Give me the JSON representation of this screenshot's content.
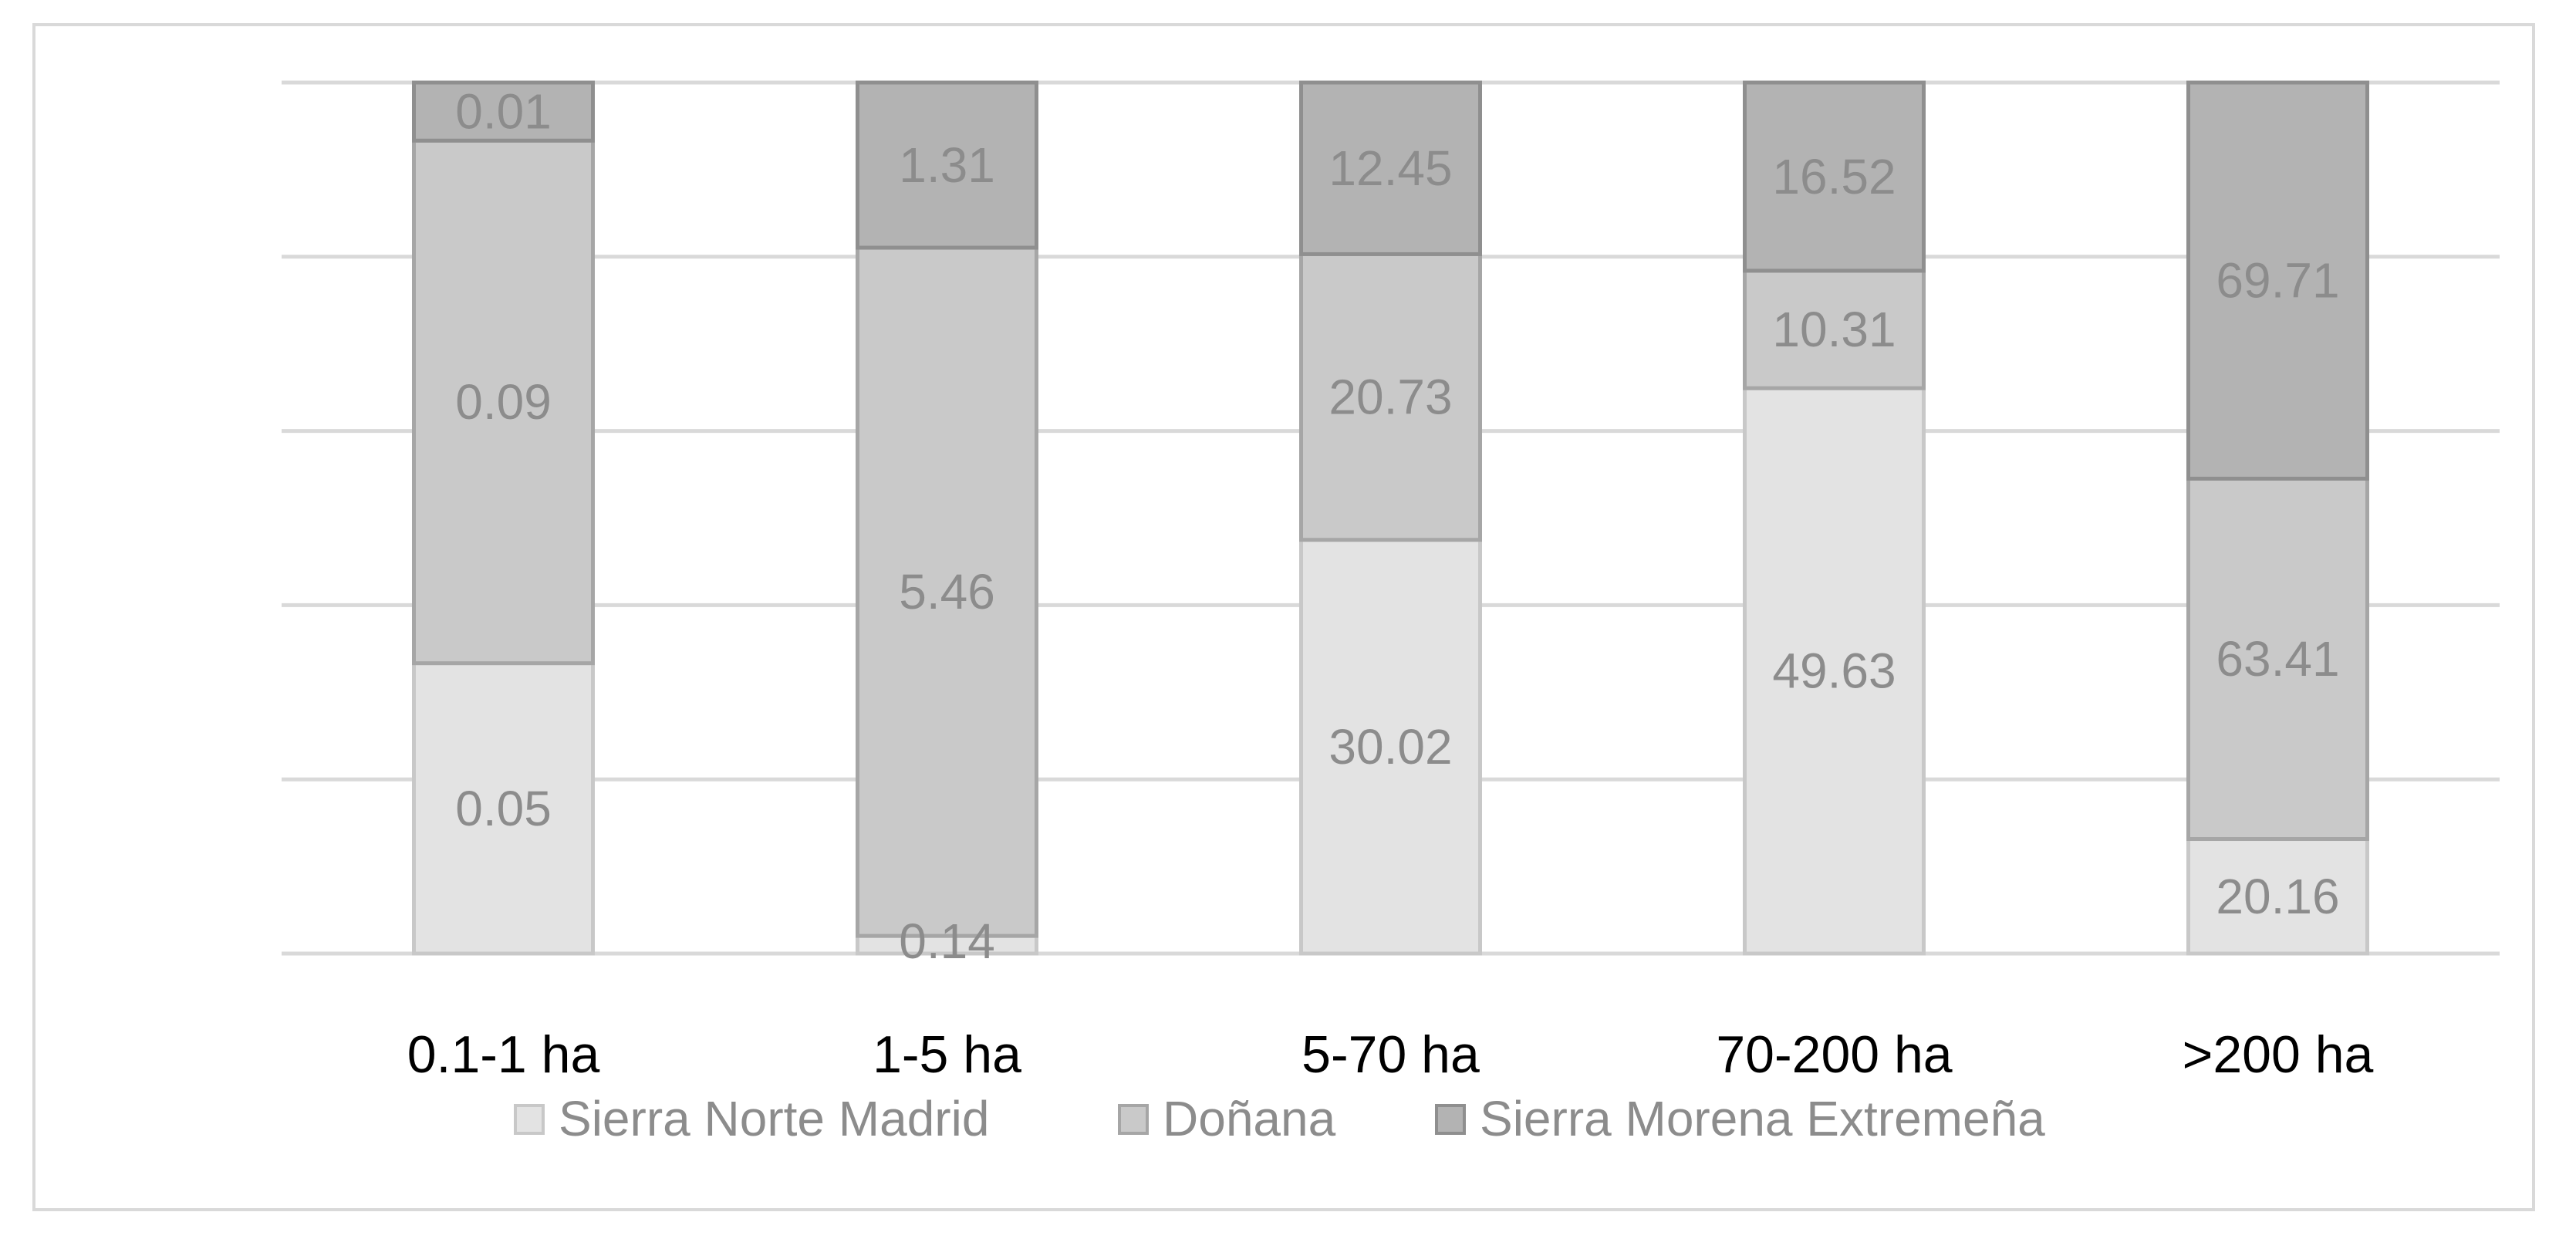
{
  "chart_data": {
    "type": "bar",
    "stacked": "percent",
    "categories": [
      "0.1-1 ha",
      "1-5 ha",
      "5-70 ha",
      "70-200 ha",
      ">200 ha"
    ],
    "series": [
      {
        "name": "Sierra Norte Madrid",
        "values": [
          0.05,
          0.14,
          30.02,
          49.63,
          20.16
        ],
        "color": "#e3e3e3",
        "stroke": "#c8c8c8"
      },
      {
        "name": "Doñana",
        "values": [
          0.09,
          5.46,
          20.73,
          10.31,
          63.41
        ],
        "color": "#c9c9c9",
        "stroke": "#a6a6a6"
      },
      {
        "name": "Sierra Morena Extremeña",
        "values": [
          0.01,
          1.31,
          12.45,
          16.52,
          69.71
        ],
        "color": "#b3b3b3",
        "stroke": "#8f8f8f"
      }
    ],
    "ylim": [
      0,
      100
    ],
    "grid": true,
    "legend": "bottom",
    "title": "",
    "xlabel": "",
    "ylabel": ""
  }
}
